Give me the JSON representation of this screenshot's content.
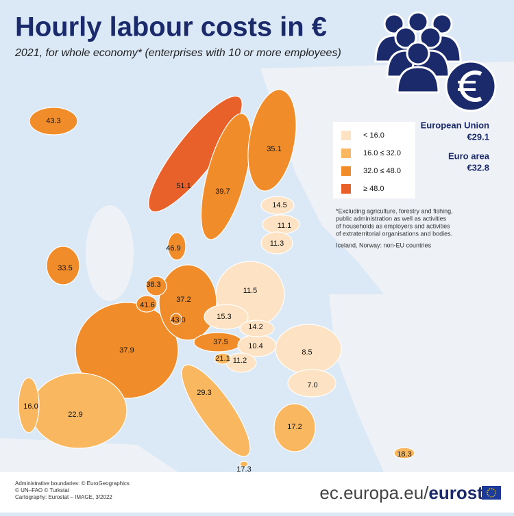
{
  "header": {
    "title": "Hourly labour costs in €",
    "subtitle": "2021, for whole economy* (enterprises with 10 or more employees)"
  },
  "legend": [
    {
      "label": "< 16.0",
      "color": "#fde3c4"
    },
    {
      "label": "16.0 ≤ 32.0",
      "color": "#f9b75f"
    },
    {
      "label": "32.0 ≤ 48.0",
      "color": "#f08c2a"
    },
    {
      "label": "≥ 48.0",
      "color": "#e8612a"
    }
  ],
  "summary": [
    {
      "label": "European Union",
      "value": "€29.1"
    },
    {
      "label": "Euro area",
      "value": "€32.8"
    }
  ],
  "notes": [
    "*Excluding agriculture, forestry and fishing,",
    "public administration as well as activities",
    "of households as employers and activities",
    "of extraterritorial organisations and bodies.",
    "Iceland, Norway: non-EU countries"
  ],
  "map": {
    "labels": [
      {
        "value": "43.3",
        "color": "#f08c2a"
      },
      {
        "value": "51.1",
        "color": "#e8612a"
      },
      {
        "value": "39.7",
        "color": "#f08c2a"
      },
      {
        "value": "35.1",
        "color": "#f08c2a"
      },
      {
        "value": "14.5",
        "color": "#fde3c4"
      },
      {
        "value": "11.1",
        "color": "#fde3c4"
      },
      {
        "value": "11.3",
        "color": "#fde3c4"
      },
      {
        "value": "46.9",
        "color": "#f08c2a"
      },
      {
        "value": "33.5",
        "color": "#f08c2a"
      },
      {
        "value": "38.3",
        "color": "#f08c2a"
      },
      {
        "value": "41.6",
        "color": "#f08c2a"
      },
      {
        "value": "37.2",
        "color": "#f08c2a"
      },
      {
        "value": "11.5",
        "color": "#fde3c4"
      },
      {
        "value": "43.0",
        "color": "#f08c2a"
      },
      {
        "value": "15.3",
        "color": "#fde3c4"
      },
      {
        "value": "14.2",
        "color": "#fde3c4"
      },
      {
        "value": "37.5",
        "color": "#f08c2a"
      },
      {
        "value": "37.9",
        "color": "#f08c2a"
      },
      {
        "value": "10.4",
        "color": "#fde3c4"
      },
      {
        "value": "21.1",
        "color": "#f9b75f"
      },
      {
        "value": "11.2",
        "color": "#fde3c4"
      },
      {
        "value": "8.5",
        "color": "#fde3c4"
      },
      {
        "value": "7.0",
        "color": "#fde3c4"
      },
      {
        "value": "29.3",
        "color": "#f9b75f"
      },
      {
        "value": "16.0",
        "color": "#f9b75f"
      },
      {
        "value": "22.9",
        "color": "#f9b75f"
      },
      {
        "value": "17.2",
        "color": "#f9b75f"
      },
      {
        "value": "18.3",
        "color": "#f9b75f"
      },
      {
        "value": "17.3",
        "color": "#f9b75f"
      }
    ]
  },
  "footer": {
    "credits": [
      "Administrative boundaries: © EuroGeographics",
      "© UN–FAO © Turkstat",
      "Cartography: Eurostat – IMAGE, 3/2022"
    ],
    "url": "ec.europa.eu/",
    "brand": "eurostat"
  }
}
